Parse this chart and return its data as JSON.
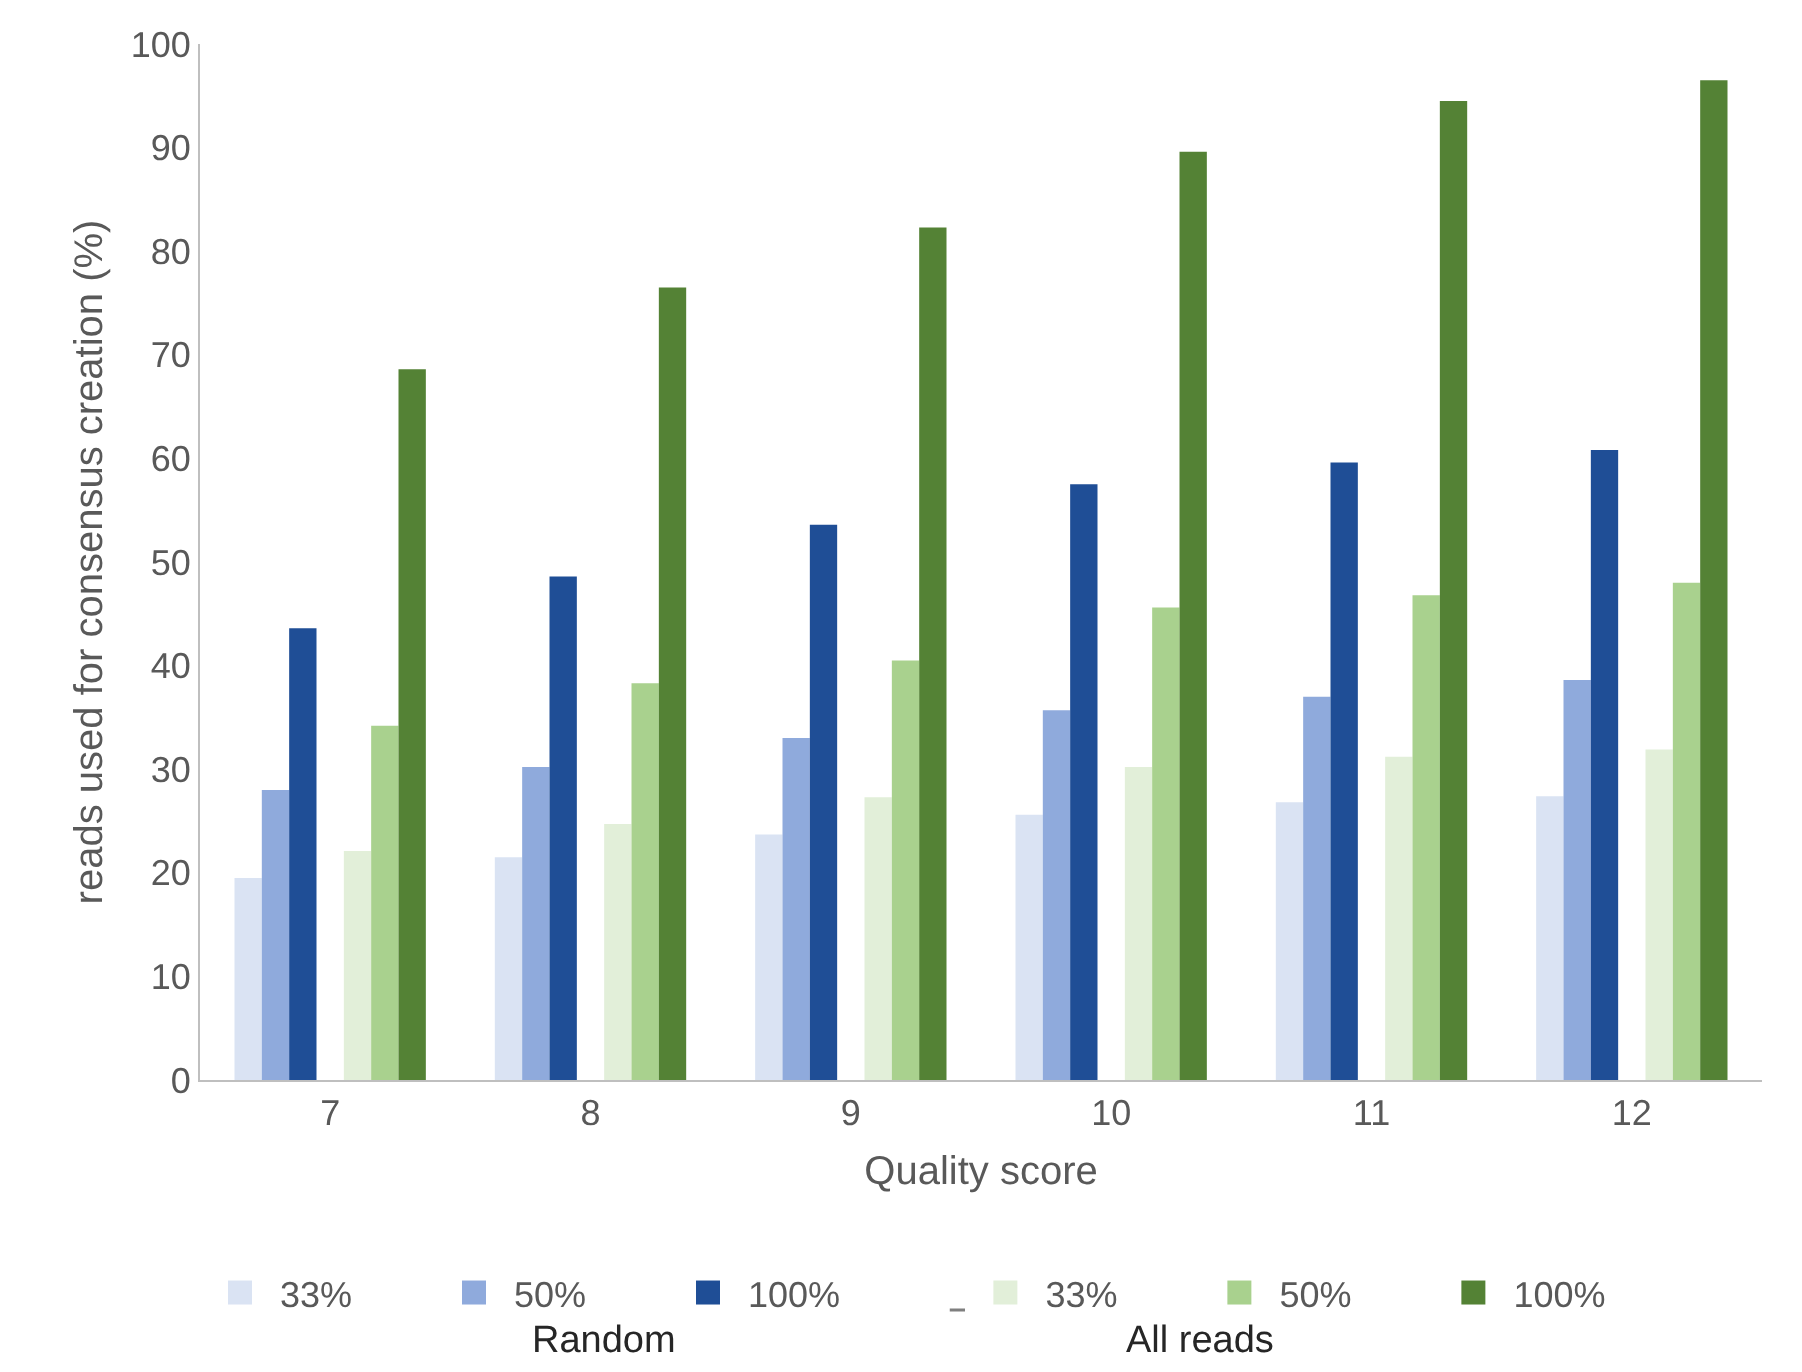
{
  "chart_data": {
    "type": "bar",
    "xlabel": "Quality score",
    "ylabel": "reads used for consensus creation (%)",
    "categories": [
      "7",
      "8",
      "9",
      "10",
      "11",
      "12"
    ],
    "series": [
      {
        "name": "33%",
        "color": "#dae3f3",
        "values": [
          19.5,
          21.5,
          23.7,
          25.6,
          26.8,
          27.4
        ]
      },
      {
        "name": "50%",
        "color": "#8faadc",
        "values": [
          28,
          30.2,
          33,
          35.7,
          37,
          38.6
        ]
      },
      {
        "name": "100%",
        "color": "#1f4e96",
        "values": [
          43.6,
          48.6,
          53.6,
          57.5,
          59.6,
          60.8
        ]
      },
      {
        "name": "33%",
        "color": "#e2efd9",
        "values": [
          22.1,
          24.7,
          27.3,
          30.2,
          31.2,
          31.9
        ]
      },
      {
        "name": "50%",
        "color": "#a9d18e",
        "values": [
          34.2,
          38.3,
          40.5,
          45.6,
          46.8,
          48
        ]
      },
      {
        "name": "100%",
        "color": "#548235",
        "values": [
          68.6,
          76.5,
          82.3,
          89.6,
          94.5,
          96.5
        ]
      }
    ],
    "annotations": [
      "Random",
      "All reads"
    ],
    "ylim": [
      0,
      100
    ],
    "yticks": [
      0,
      10,
      20,
      30,
      40,
      50,
      60,
      70,
      80,
      90,
      100
    ],
    "legend": "bottom"
  }
}
